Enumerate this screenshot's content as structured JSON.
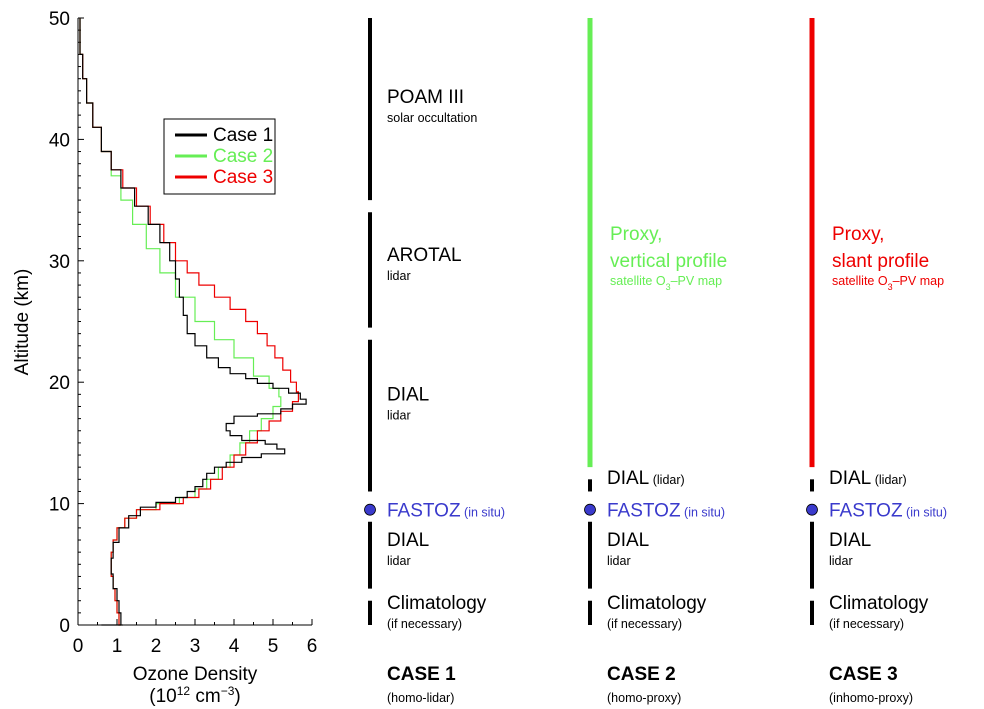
{
  "chart_data": {
    "type": "line",
    "xlabel": "Ozone Density",
    "xlabel_unit": {
      "pre": "(10",
      "exp1": "12",
      "mid": " cm",
      "exp2": "−3",
      "post": ")"
    },
    "ylabel": "Altitude (km)",
    "xlim": [
      0,
      6
    ],
    "ylim": [
      0,
      50
    ],
    "x_ticks": [
      "0",
      "1",
      "2",
      "3",
      "4",
      "5",
      "6"
    ],
    "y_ticks": [
      "0",
      "10",
      "20",
      "30",
      "40",
      "50"
    ],
    "legend": {
      "placement": "top-right",
      "entries": [
        "Case 1",
        "Case 2",
        "Case 3"
      ]
    },
    "colors": {
      "case1": "#000000",
      "case2": "#66ee55",
      "case3": "#ee0000",
      "fastoz": "#3a3acc"
    },
    "series": [
      {
        "name": "Case 1",
        "points": [
          [
            0.05,
            50
          ],
          [
            0.12,
            47
          ],
          [
            0.22,
            45
          ],
          [
            0.38,
            43
          ],
          [
            0.6,
            41
          ],
          [
            0.85,
            39
          ],
          [
            1.1,
            37.5
          ],
          [
            1.45,
            36
          ],
          [
            1.8,
            34.5
          ],
          [
            2.1,
            33
          ],
          [
            2.35,
            31.5
          ],
          [
            2.5,
            30
          ],
          [
            2.6,
            28.5
          ],
          [
            2.7,
            27
          ],
          [
            2.8,
            25.5
          ],
          [
            3.0,
            24
          ],
          [
            3.3,
            23
          ],
          [
            3.6,
            22
          ],
          [
            3.9,
            21.2
          ],
          [
            4.3,
            20.7
          ],
          [
            4.6,
            20.3
          ],
          [
            5.0,
            19.9
          ],
          [
            5.4,
            19.5
          ],
          [
            5.7,
            19.1
          ],
          [
            5.85,
            18.6
          ],
          [
            5.5,
            18.2
          ],
          [
            5.2,
            17.8
          ],
          [
            4.6,
            17.4
          ],
          [
            4.0,
            17.2
          ],
          [
            3.8,
            16.6
          ],
          [
            3.9,
            16.0
          ],
          [
            4.2,
            15.6
          ],
          [
            4.8,
            15.2
          ],
          [
            5.1,
            14.9
          ],
          [
            5.3,
            14.5
          ],
          [
            4.7,
            14.1
          ],
          [
            4.2,
            13.8
          ],
          [
            3.8,
            13.4
          ],
          [
            3.5,
            13.0
          ],
          [
            3.3,
            12.5
          ],
          [
            3.2,
            12.0
          ],
          [
            3.0,
            11.4
          ],
          [
            2.8,
            11.0
          ],
          [
            2.5,
            10.5
          ],
          [
            2.0,
            10.1
          ],
          [
            1.6,
            9.7
          ],
          [
            1.3,
            9.0
          ],
          [
            1.05,
            8.0
          ],
          [
            0.9,
            6.8
          ],
          [
            0.85,
            5.5
          ],
          [
            0.9,
            4.2
          ],
          [
            1.0,
            3.0
          ],
          [
            1.05,
            2.0
          ],
          [
            1.1,
            1.0
          ],
          [
            1.15,
            0
          ],
          [
            0.6,
            0
          ]
        ]
      },
      {
        "name": "Case 2",
        "points": [
          [
            0.05,
            50
          ],
          [
            0.12,
            47
          ],
          [
            0.22,
            45
          ],
          [
            0.38,
            43
          ],
          [
            0.6,
            41
          ],
          [
            0.85,
            39
          ],
          [
            1.1,
            37
          ],
          [
            1.4,
            35
          ],
          [
            1.75,
            33
          ],
          [
            2.1,
            31
          ],
          [
            2.5,
            29
          ],
          [
            3.0,
            27
          ],
          [
            3.5,
            25
          ],
          [
            4.0,
            23.5
          ],
          [
            4.5,
            22
          ],
          [
            4.9,
            20.5
          ],
          [
            5.15,
            19.5
          ],
          [
            5.2,
            18.8
          ],
          [
            5.0,
            18.0
          ],
          [
            4.7,
            17.0
          ],
          [
            4.4,
            16.0
          ],
          [
            4.15,
            15.0
          ],
          [
            3.9,
            14.0
          ],
          [
            3.6,
            13.0
          ],
          [
            3.3,
            12.0
          ],
          [
            3.0,
            11.2
          ],
          [
            2.6,
            10.5
          ],
          [
            2.0,
            10.0
          ],
          [
            1.5,
            9.5
          ],
          [
            1.2,
            8.8
          ],
          [
            1.0,
            8.0
          ],
          [
            0.9,
            7.0
          ],
          [
            0.85,
            6.0
          ],
          [
            0.85,
            5.0
          ],
          [
            0.9,
            4.0
          ],
          [
            0.95,
            3.0
          ],
          [
            1.0,
            2.0
          ],
          [
            1.05,
            1.0
          ],
          [
            1.1,
            0
          ]
        ]
      },
      {
        "name": "Case 3",
        "points": [
          [
            0.05,
            50
          ],
          [
            0.12,
            47
          ],
          [
            0.22,
            45
          ],
          [
            0.38,
            43
          ],
          [
            0.6,
            41
          ],
          [
            0.85,
            39
          ],
          [
            1.15,
            37.5
          ],
          [
            1.5,
            36
          ],
          [
            1.85,
            34.5
          ],
          [
            2.2,
            33
          ],
          [
            2.5,
            31.5
          ],
          [
            2.8,
            30
          ],
          [
            3.1,
            29
          ],
          [
            3.5,
            28
          ],
          [
            3.9,
            27
          ],
          [
            4.3,
            26
          ],
          [
            4.6,
            25
          ],
          [
            4.85,
            24
          ],
          [
            5.05,
            23
          ],
          [
            5.25,
            22
          ],
          [
            5.45,
            21
          ],
          [
            5.6,
            20
          ],
          [
            5.65,
            19.2
          ],
          [
            5.5,
            18.4
          ],
          [
            5.2,
            17.6
          ],
          [
            4.9,
            16.8
          ],
          [
            4.6,
            16.0
          ],
          [
            4.3,
            15.0
          ],
          [
            4.0,
            14.0
          ],
          [
            3.7,
            13.0
          ],
          [
            3.4,
            12.0
          ],
          [
            3.1,
            11.2
          ],
          [
            2.7,
            10.5
          ],
          [
            2.1,
            10.0
          ],
          [
            1.5,
            9.5
          ],
          [
            1.2,
            8.8
          ],
          [
            1.0,
            8.0
          ],
          [
            0.9,
            7.0
          ],
          [
            0.85,
            6.0
          ],
          [
            0.85,
            5.0
          ],
          [
            0.9,
            4.0
          ],
          [
            0.95,
            3.0
          ],
          [
            1.0,
            2.0
          ],
          [
            1.05,
            1.0
          ],
          [
            1.1,
            0
          ]
        ]
      }
    ]
  },
  "cases": [
    {
      "title": "CASE 1",
      "subtitle": "(homo-lidar)",
      "color": "#000000",
      "bars": [
        {
          "y0": 0,
          "y1": 2
        },
        {
          "y0": 3,
          "y1": 8.5
        },
        {
          "y0": 11,
          "y1": 23.5
        },
        {
          "y0": 24.5,
          "y1": 34
        },
        {
          "y0": 35,
          "y1": 50
        }
      ],
      "labels": [
        {
          "y": 43,
          "main": "POAM III",
          "sub": "solar occultation"
        },
        {
          "y": 30,
          "main": "AROTAL",
          "sub": "lidar"
        },
        {
          "y": 18.5,
          "main": "DIAL",
          "sub": "lidar"
        },
        {
          "y": 6.5,
          "main": "DIAL",
          "sub": "lidar"
        },
        {
          "y": 1.3,
          "main": "Climatology",
          "sub": "(if necessary)"
        }
      ],
      "fastoz": {
        "name": "FASTOZ",
        "note": "(in situ)"
      }
    },
    {
      "title": "CASE 2",
      "subtitle": "(homo-proxy)",
      "color": "#66ee55",
      "bars": [
        {
          "y0": 0,
          "y1": 2
        },
        {
          "y0": 3,
          "y1": 8.5
        },
        {
          "y0": 11,
          "y1": 12
        }
      ],
      "proxy_bar": {
        "y0": 13,
        "y1": 50
      },
      "labels": [
        {
          "y": 11.6,
          "main": "DIAL",
          "sub": "",
          "inline": "(lidar)"
        },
        {
          "y": 6.5,
          "main": "DIAL",
          "sub": "lidar"
        },
        {
          "y": 1.3,
          "main": "Climatology",
          "sub": "(if necessary)"
        }
      ],
      "proxy": {
        "line1": "Proxy,",
        "line2": "vertical profile",
        "sub_pre": "satellite O",
        "sub_sub": "3",
        "sub_post": "–PV map"
      },
      "fastoz": {
        "name": "FASTOZ",
        "note": "(in situ)"
      }
    },
    {
      "title": "CASE 3",
      "subtitle": "(inhomo-proxy)",
      "color": "#ee0000",
      "bars": [
        {
          "y0": 0,
          "y1": 2
        },
        {
          "y0": 3,
          "y1": 8.5
        },
        {
          "y0": 11,
          "y1": 12
        }
      ],
      "proxy_bar": {
        "y0": 13,
        "y1": 50
      },
      "labels": [
        {
          "y": 11.6,
          "main": "DIAL",
          "sub": "",
          "inline": "(lidar)"
        },
        {
          "y": 6.5,
          "main": "DIAL",
          "sub": "lidar"
        },
        {
          "y": 1.3,
          "main": "Climatology",
          "sub": "(if necessary)"
        }
      ],
      "proxy": {
        "line1": "Proxy,",
        "line2": "slant profile",
        "sub_pre": "satellite O",
        "sub_sub": "3",
        "sub_post": "–PV map"
      },
      "fastoz": {
        "name": "FASTOZ",
        "note": "(in situ)"
      }
    }
  ]
}
